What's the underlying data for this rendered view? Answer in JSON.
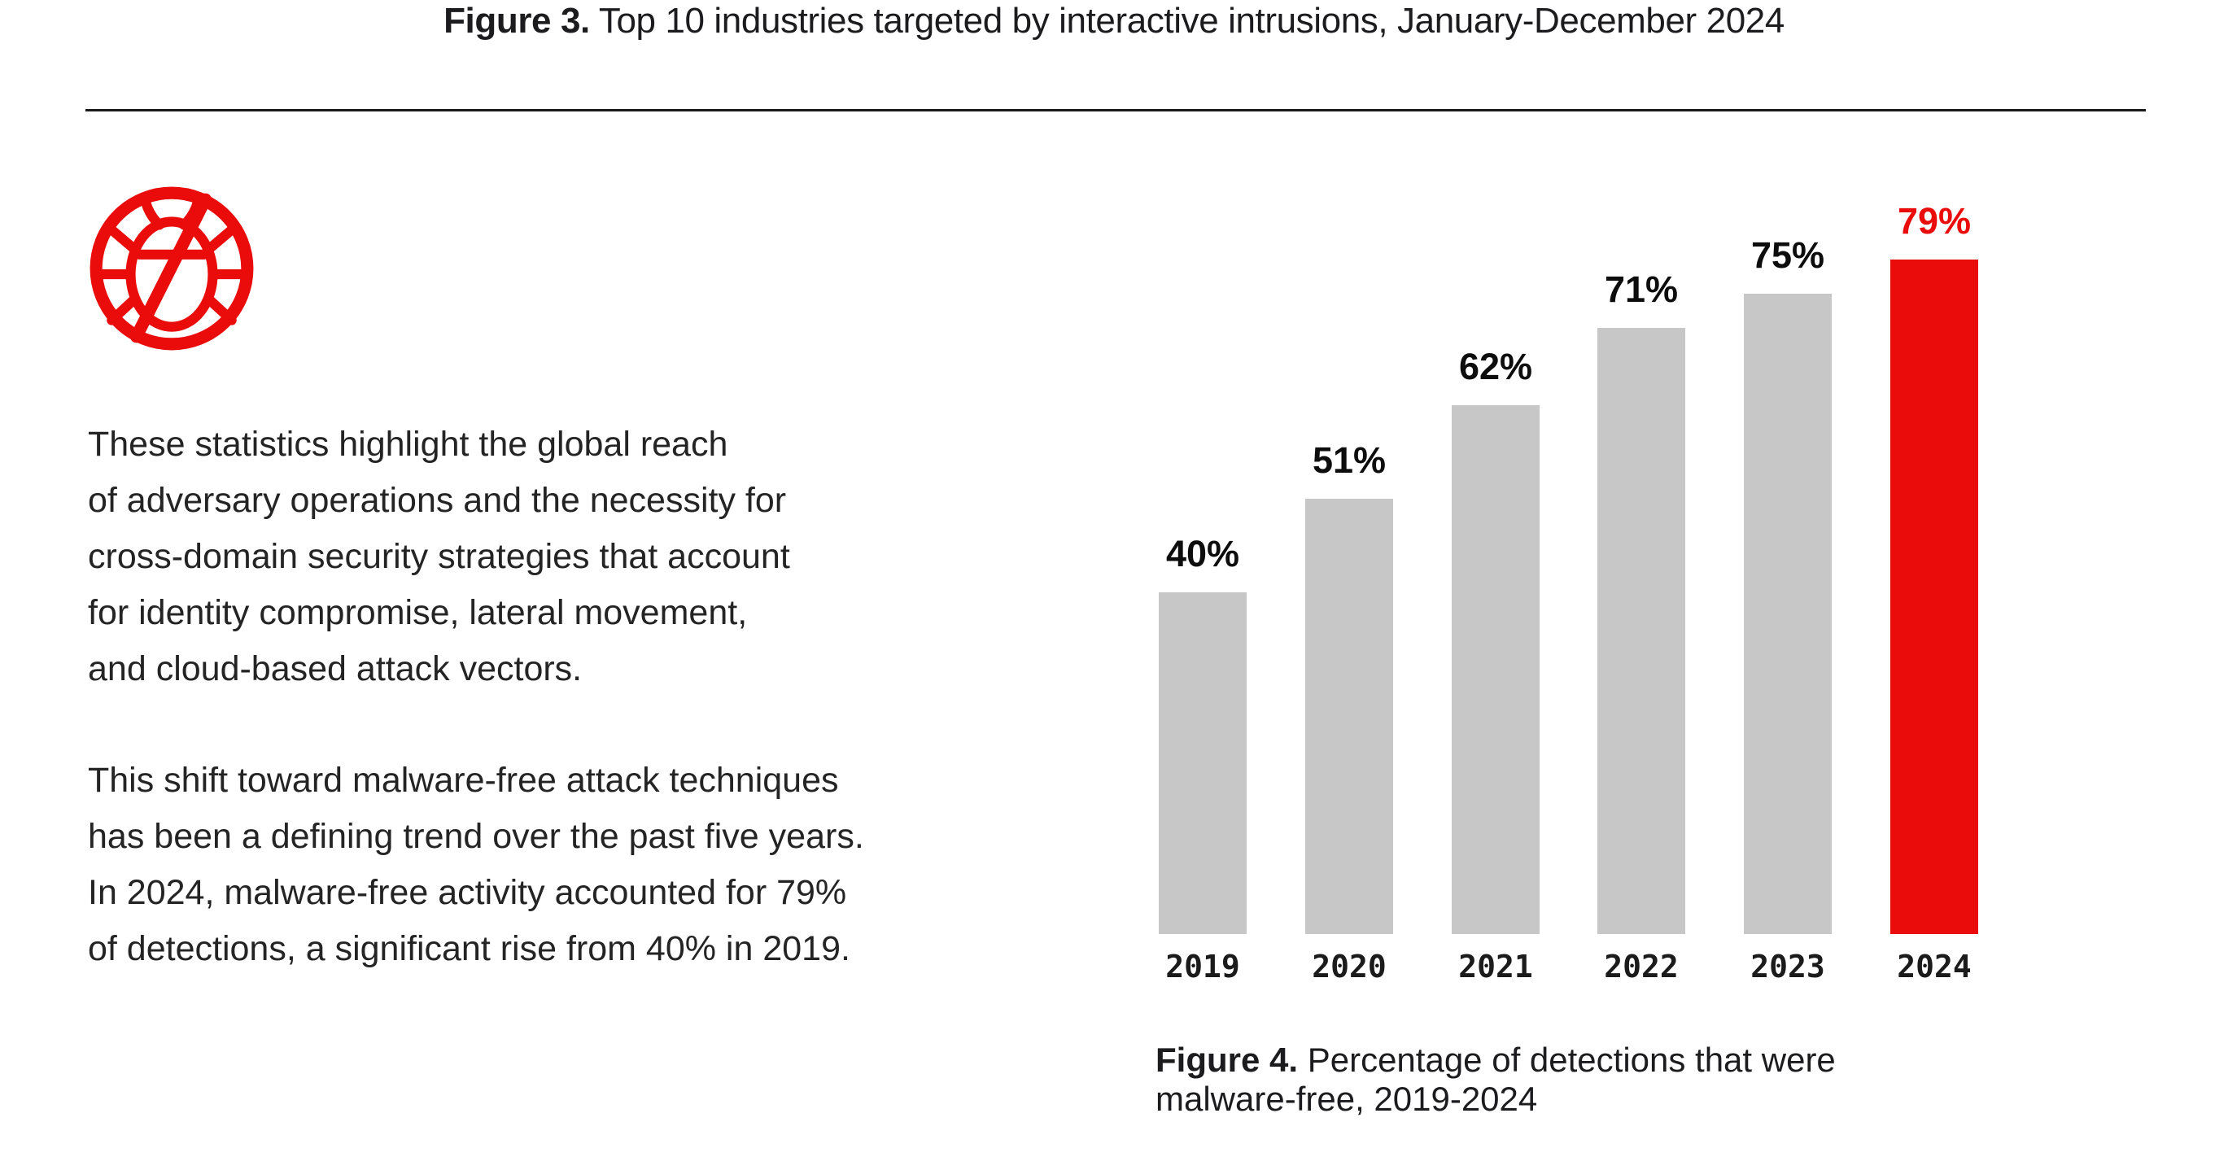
{
  "header": {
    "figure_label": "Figure 3.",
    "title_rest": " Top 10 industries targeted by interactive intrusions, January-December 2024"
  },
  "icon": {
    "name": "no-malware-icon",
    "meaning": "bug inside prohibition circle (malware-free)"
  },
  "intro": {
    "lines": [
      "These statistics highlight the global reach",
      "of adversary operations and the necessity for",
      "cross-domain security strategies that account",
      "for identity compromise, lateral movement,",
      "and cloud-based attack vectors."
    ]
  },
  "trend": {
    "lines": [
      "This shift toward malware-free attack techniques",
      "has been a defining trend over the past five years.",
      "In 2024, malware-free activity accounted for 79%",
      "of detections, a significant rise from 40% in 2019."
    ]
  },
  "chart_data": {
    "type": "bar",
    "title": "Percentage of detections that were malware-free, 2019-2024",
    "categories": [
      "2019",
      "2020",
      "2021",
      "2022",
      "2023",
      "2024"
    ],
    "values": [
      40,
      51,
      62,
      71,
      75,
      79
    ],
    "value_labels": [
      "40%",
      "51%",
      "62%",
      "71%",
      "75%",
      "79%"
    ],
    "highlight_category": "2024",
    "ylim": [
      0,
      100
    ],
    "grid": false,
    "legend": "none",
    "bar_color": "#C7C7C8",
    "highlight_color": "#EA0B0B",
    "label_color": "#0D0D0D"
  },
  "caption": {
    "figure_label": "Figure 4.",
    "line1_rest": " Percentage of detections that were",
    "line2": "malware-free, 2019-2024"
  },
  "colors": {
    "accent_red": "#EA0B0B",
    "bar_gray": "#C7C7C8",
    "text_dark": "#1C1C1E",
    "rule": "#1A1A1A"
  }
}
